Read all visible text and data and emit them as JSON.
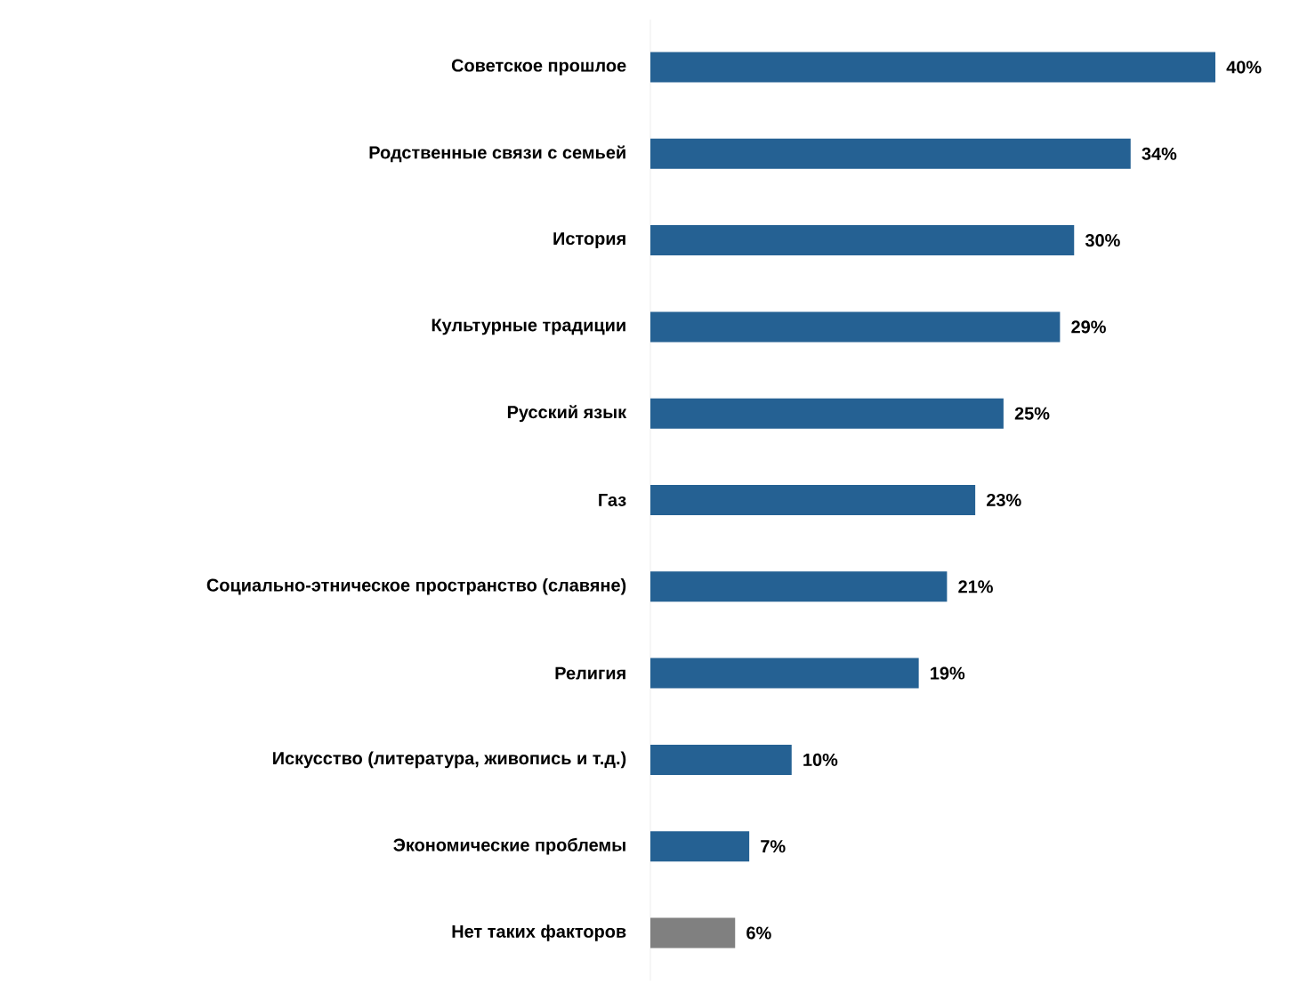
{
  "chart_data": {
    "type": "bar",
    "orientation": "horizontal",
    "categories": [
      "Советское прошлое",
      "Родственные связи с семьей",
      "История",
      "Культурные традиции",
      "Русский язык",
      "Газ",
      "Социально-этническое пространство (славяне)",
      "Религия",
      "Искусство (литература, живопись и т.д.)",
      "Экономические проблемы",
      "Нет таких факторов"
    ],
    "values": [
      40,
      34,
      30,
      29,
      25,
      23,
      21,
      19,
      10,
      7,
      6
    ],
    "colors": [
      "#256193",
      "#256193",
      "#256193",
      "#256193",
      "#256193",
      "#256193",
      "#256193",
      "#256193",
      "#256193",
      "#256193",
      "#808080"
    ],
    "value_labels": [
      "40%",
      "34%",
      "30%",
      "29%",
      "25%",
      "23%",
      "21%",
      "19%",
      "10%",
      "7%",
      "6%"
    ]
  }
}
